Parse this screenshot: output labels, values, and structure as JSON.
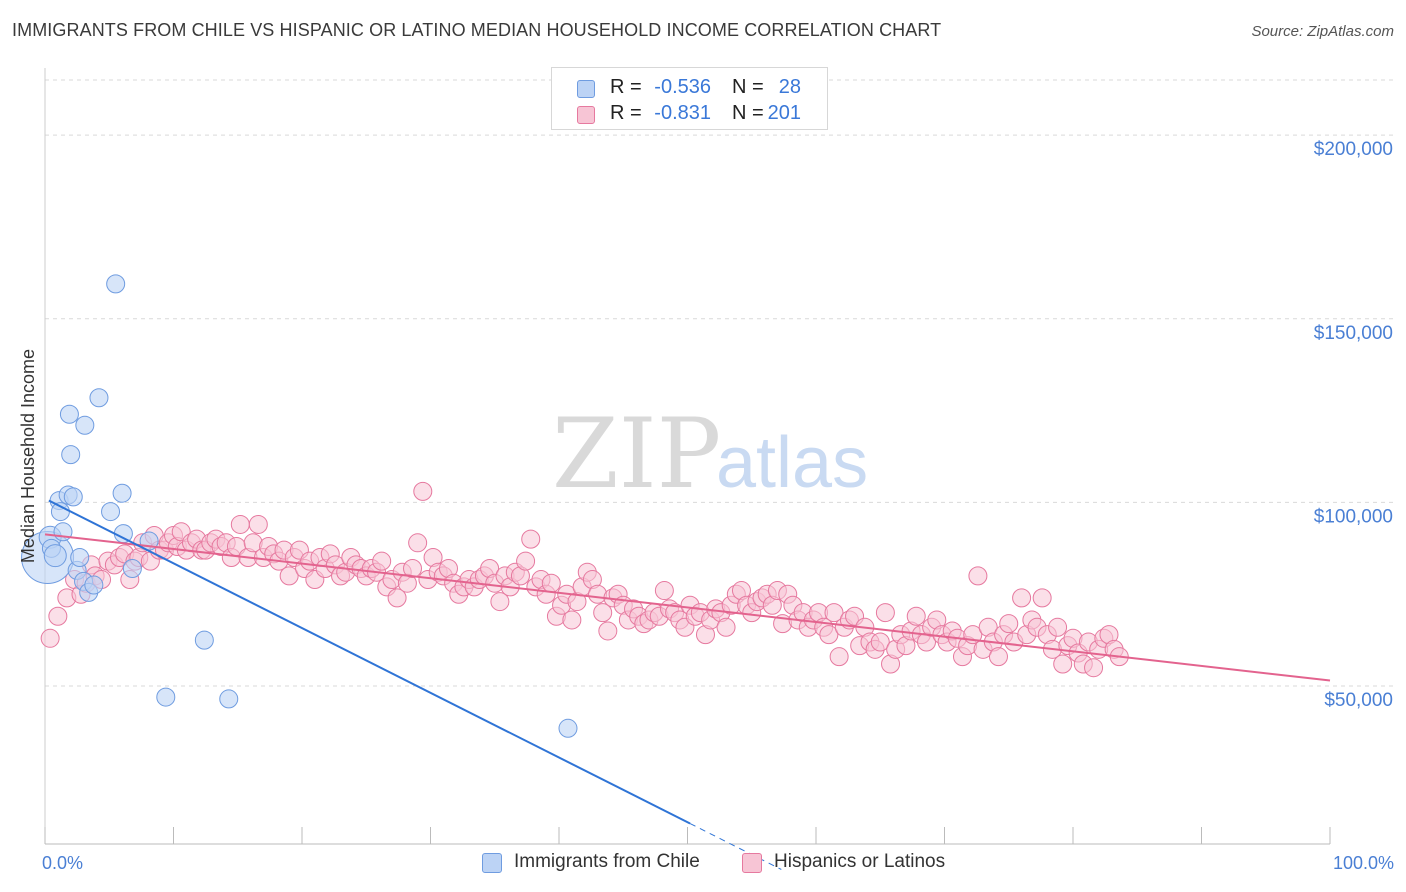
{
  "title": "IMMIGRANTS FROM CHILE VS HISPANIC OR LATINO MEDIAN HOUSEHOLD INCOME CORRELATION CHART",
  "source": "Source: ZipAtlas.com",
  "watermark": {
    "zip": "ZIP",
    "atlas": "atlas"
  },
  "colors": {
    "blue_fill": "#bcd3f5",
    "blue_stroke": "#6f9ce0",
    "blue_line": "#2f74d6",
    "pink_fill": "#f7c5d5",
    "pink_stroke": "#e6799f",
    "pink_line": "#e3638e",
    "grid": "#d9d9d9",
    "axis_text": "#4a7fd4"
  },
  "legend": {
    "rows": [
      {
        "r_label": "R =",
        "r_value": "-0.536",
        "n_label": "N =",
        "n_value": "28"
      },
      {
        "r_label": "R =",
        "r_value": "-0.831",
        "n_label": "N =",
        "n_value": "201"
      }
    ]
  },
  "bottom_legend": [
    {
      "label": "Immigrants from Chile"
    },
    {
      "label": "Hispanics or Latinos"
    }
  ],
  "chart_data": {
    "type": "scatter",
    "title": "IMMIGRANTS FROM CHILE VS HISPANIC OR LATINO MEDIAN HOUSEHOLD INCOME CORRELATION CHART",
    "xlabel": "",
    "ylabel": "Median Household Income",
    "xlim": [
      0,
      100
    ],
    "ylim": [
      7000,
      215000
    ],
    "x_tick_labels": [
      "0.0%",
      "100.0%"
    ],
    "y_ticks": [
      50000,
      100000,
      150000,
      200000
    ],
    "y_tick_labels": [
      "$50,000",
      "$100,000",
      "$150,000",
      "$200,000"
    ],
    "series": [
      {
        "name": "Immigrants from Chile",
        "R": -0.536,
        "N": 28,
        "trend": {
          "x0": 0.3,
          "y0": 100500,
          "x_solid_end": 50.2,
          "x_dash_end": 57.3,
          "slope": -1762
        },
        "points": [
          [
            0.2,
            85000,
            26
          ],
          [
            0.4,
            90500,
            11
          ],
          [
            0.5,
            87500,
            9
          ],
          [
            0.8,
            85500,
            11
          ],
          [
            1.1,
            100500,
            9
          ],
          [
            1.2,
            97500,
            9
          ],
          [
            1.4,
            92000,
            9
          ],
          [
            1.9,
            124000,
            9
          ],
          [
            2.0,
            113000,
            9
          ],
          [
            1.8,
            102000,
            9
          ],
          [
            2.2,
            101500,
            9
          ],
          [
            2.5,
            81500,
            9
          ],
          [
            2.7,
            85000,
            9
          ],
          [
            3.1,
            121000,
            9
          ],
          [
            3.0,
            78500,
            9
          ],
          [
            3.4,
            75500,
            9
          ],
          [
            3.8,
            77500,
            9
          ],
          [
            4.2,
            128500,
            9
          ],
          [
            5.1,
            97500,
            9
          ],
          [
            5.5,
            159500,
            9
          ],
          [
            6.0,
            102500,
            9
          ],
          [
            6.1,
            91500,
            9
          ],
          [
            6.8,
            82000,
            9
          ],
          [
            8.1,
            89500,
            9
          ],
          [
            9.4,
            47000,
            9
          ],
          [
            12.4,
            62500,
            9
          ],
          [
            14.3,
            46500,
            9
          ],
          [
            40.7,
            38500,
            9
          ]
        ]
      },
      {
        "name": "Hispanics or Latinos",
        "R": -0.831,
        "N": 201,
        "trend": {
          "x0": 0,
          "y0": 91300,
          "x1": 100,
          "y1": 51500
        },
        "points": [
          [
            0.4,
            63000
          ],
          [
            1.0,
            69000
          ],
          [
            1.7,
            74000
          ],
          [
            2.3,
            79000
          ],
          [
            2.8,
            75000
          ],
          [
            3.2,
            78000
          ],
          [
            3.6,
            83000
          ],
          [
            3.9,
            80000
          ],
          [
            4.4,
            79000
          ],
          [
            4.9,
            84000
          ],
          [
            5.4,
            83000
          ],
          [
            5.8,
            85000
          ],
          [
            6.2,
            86000
          ],
          [
            6.6,
            79000
          ],
          [
            7.0,
            84000
          ],
          [
            7.3,
            85000
          ],
          [
            7.6,
            89000
          ],
          [
            8.2,
            84000
          ],
          [
            8.5,
            91000
          ],
          [
            8.9,
            87000
          ],
          [
            9.3,
            87000
          ],
          [
            9.6,
            89000
          ],
          [
            10.0,
            91000
          ],
          [
            10.3,
            88000
          ],
          [
            10.6,
            92000
          ],
          [
            11.0,
            87000
          ],
          [
            11.4,
            89000
          ],
          [
            11.8,
            90000
          ],
          [
            12.2,
            87000
          ],
          [
            12.5,
            87000
          ],
          [
            12.9,
            89000
          ],
          [
            13.3,
            90000
          ],
          [
            13.7,
            88000
          ],
          [
            14.1,
            89000
          ],
          [
            14.5,
            85000
          ],
          [
            14.9,
            88000
          ],
          [
            15.2,
            94000
          ],
          [
            15.8,
            85000
          ],
          [
            16.2,
            89000
          ],
          [
            16.6,
            94000
          ],
          [
            17.0,
            85000
          ],
          [
            17.4,
            88000
          ],
          [
            17.8,
            86000
          ],
          [
            18.2,
            84000
          ],
          [
            18.6,
            87000
          ],
          [
            19.0,
            80000
          ],
          [
            19.4,
            85000
          ],
          [
            19.8,
            87000
          ],
          [
            20.2,
            82000
          ],
          [
            20.6,
            84000
          ],
          [
            21.0,
            79000
          ],
          [
            21.4,
            85000
          ],
          [
            21.8,
            82000
          ],
          [
            22.2,
            86000
          ],
          [
            22.6,
            83000
          ],
          [
            23.0,
            80000
          ],
          [
            23.4,
            81000
          ],
          [
            23.8,
            85000
          ],
          [
            24.2,
            83000
          ],
          [
            24.6,
            82000
          ],
          [
            25.0,
            80000
          ],
          [
            25.4,
            82000
          ],
          [
            25.8,
            81000
          ],
          [
            26.2,
            84000
          ],
          [
            26.6,
            77000
          ],
          [
            27.0,
            79000
          ],
          [
            27.4,
            74000
          ],
          [
            27.8,
            81000
          ],
          [
            28.2,
            78000
          ],
          [
            28.6,
            82000
          ],
          [
            29.0,
            89000
          ],
          [
            29.4,
            103000
          ],
          [
            29.8,
            79000
          ],
          [
            30.2,
            85000
          ],
          [
            30.6,
            81000
          ],
          [
            31.0,
            80000
          ],
          [
            31.4,
            82000
          ],
          [
            31.8,
            78000
          ],
          [
            32.2,
            75000
          ],
          [
            32.6,
            77000
          ],
          [
            33.0,
            79000
          ],
          [
            33.4,
            77000
          ],
          [
            33.8,
            79000
          ],
          [
            34.2,
            80000
          ],
          [
            34.6,
            82000
          ],
          [
            35.0,
            78000
          ],
          [
            35.4,
            73000
          ],
          [
            35.8,
            80000
          ],
          [
            36.2,
            77000
          ],
          [
            36.6,
            81000
          ],
          [
            37.0,
            80000
          ],
          [
            37.4,
            84000
          ],
          [
            37.8,
            90000
          ],
          [
            38.2,
            77000
          ],
          [
            38.6,
            79000
          ],
          [
            39.0,
            75000
          ],
          [
            39.4,
            78000
          ],
          [
            39.8,
            69000
          ],
          [
            40.2,
            72000
          ],
          [
            40.6,
            75000
          ],
          [
            41.0,
            68000
          ],
          [
            41.4,
            73000
          ],
          [
            41.8,
            77000
          ],
          [
            42.2,
            81000
          ],
          [
            42.6,
            79000
          ],
          [
            43.0,
            75000
          ],
          [
            43.4,
            70000
          ],
          [
            43.8,
            65000
          ],
          [
            44.2,
            74000
          ],
          [
            44.6,
            75000
          ],
          [
            45.0,
            72000
          ],
          [
            45.4,
            68000
          ],
          [
            45.8,
            71000
          ],
          [
            46.2,
            69000
          ],
          [
            46.6,
            67000
          ],
          [
            47.0,
            68000
          ],
          [
            47.4,
            70000
          ],
          [
            47.8,
            69000
          ],
          [
            48.2,
            76000
          ],
          [
            48.6,
            71000
          ],
          [
            49.0,
            70000
          ],
          [
            49.4,
            68000
          ],
          [
            49.8,
            66000
          ],
          [
            50.2,
            72000
          ],
          [
            50.6,
            69000
          ],
          [
            51.0,
            70000
          ],
          [
            51.4,
            64000
          ],
          [
            51.8,
            68000
          ],
          [
            52.2,
            71000
          ],
          [
            52.6,
            70000
          ],
          [
            53.0,
            66000
          ],
          [
            53.4,
            72000
          ],
          [
            53.8,
            75000
          ],
          [
            54.2,
            76000
          ],
          [
            54.6,
            72000
          ],
          [
            55.0,
            70000
          ],
          [
            55.4,
            73000
          ],
          [
            55.8,
            74000
          ],
          [
            56.2,
            75000
          ],
          [
            56.6,
            72000
          ],
          [
            57.0,
            76000
          ],
          [
            57.4,
            67000
          ],
          [
            57.8,
            75000
          ],
          [
            58.2,
            72000
          ],
          [
            58.6,
            68000
          ],
          [
            59.0,
            70000
          ],
          [
            59.4,
            66000
          ],
          [
            59.8,
            68000
          ],
          [
            60.2,
            70000
          ],
          [
            60.6,
            66000
          ],
          [
            61.0,
            64000
          ],
          [
            61.4,
            70000
          ],
          [
            61.8,
            58000
          ],
          [
            62.2,
            66000
          ],
          [
            62.6,
            68000
          ],
          [
            63.0,
            69000
          ],
          [
            63.4,
            61000
          ],
          [
            63.8,
            66000
          ],
          [
            64.2,
            62000
          ],
          [
            64.6,
            60000
          ],
          [
            65.0,
            62000
          ],
          [
            65.4,
            70000
          ],
          [
            65.8,
            56000
          ],
          [
            66.2,
            60000
          ],
          [
            66.6,
            64000
          ],
          [
            67.0,
            61000
          ],
          [
            67.4,
            65000
          ],
          [
            67.8,
            69000
          ],
          [
            68.2,
            64000
          ],
          [
            68.6,
            62000
          ],
          [
            69.0,
            66000
          ],
          [
            69.4,
            68000
          ],
          [
            69.8,
            64000
          ],
          [
            70.2,
            62000
          ],
          [
            70.6,
            65000
          ],
          [
            71.0,
            63000
          ],
          [
            71.4,
            58000
          ],
          [
            71.8,
            61000
          ],
          [
            72.2,
            64000
          ],
          [
            72.6,
            80000
          ],
          [
            73.0,
            60000
          ],
          [
            73.4,
            66000
          ],
          [
            73.8,
            62000
          ],
          [
            74.2,
            58000
          ],
          [
            74.6,
            64000
          ],
          [
            75.0,
            67000
          ],
          [
            75.4,
            62000
          ],
          [
            76.0,
            74000
          ],
          [
            76.4,
            64000
          ],
          [
            76.8,
            68000
          ],
          [
            77.2,
            66000
          ],
          [
            77.6,
            74000
          ],
          [
            78.0,
            64000
          ],
          [
            78.4,
            60000
          ],
          [
            78.8,
            66000
          ],
          [
            79.2,
            56000
          ],
          [
            79.6,
            61000
          ],
          [
            80.0,
            63000
          ],
          [
            80.4,
            59000
          ],
          [
            80.8,
            56000
          ],
          [
            81.2,
            62000
          ],
          [
            81.6,
            55000
          ],
          [
            82.0,
            60000
          ],
          [
            82.4,
            63000
          ],
          [
            82.8,
            64000
          ],
          [
            83.2,
            60000
          ],
          [
            83.6,
            58000
          ]
        ]
      }
    ]
  }
}
